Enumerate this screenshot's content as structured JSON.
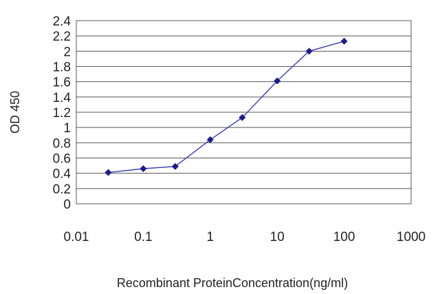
{
  "chart_data": {
    "type": "line",
    "xlabel": "Recombinant ProteinConcentration(ng/ml)",
    "ylabel": "OD 450",
    "xscale": "log",
    "xlim": [
      0.01,
      1000
    ],
    "ylim": [
      0,
      2.4
    ],
    "grid": "horizontal",
    "x_ticks": [
      "0.01",
      "0.1",
      "1",
      "10",
      "100",
      "1000"
    ],
    "y_ticks": [
      "0",
      "0.2",
      "0.4",
      "0.6",
      "0.8",
      "1",
      "1.2",
      "1.4",
      "1.6",
      "1.8",
      "2",
      "2.2",
      "2.4"
    ],
    "series": [
      {
        "color": "#1c1c8c",
        "points": [
          {
            "x": 0.03,
            "y": 0.41
          },
          {
            "x": 0.1,
            "y": 0.46
          },
          {
            "x": 0.3,
            "y": 0.49
          },
          {
            "x": 1,
            "y": 0.84
          },
          {
            "x": 3,
            "y": 1.13
          },
          {
            "x": 10,
            "y": 1.61
          },
          {
            "x": 30,
            "y": 2.0
          },
          {
            "x": 100,
            "y": 2.13
          }
        ]
      }
    ]
  }
}
